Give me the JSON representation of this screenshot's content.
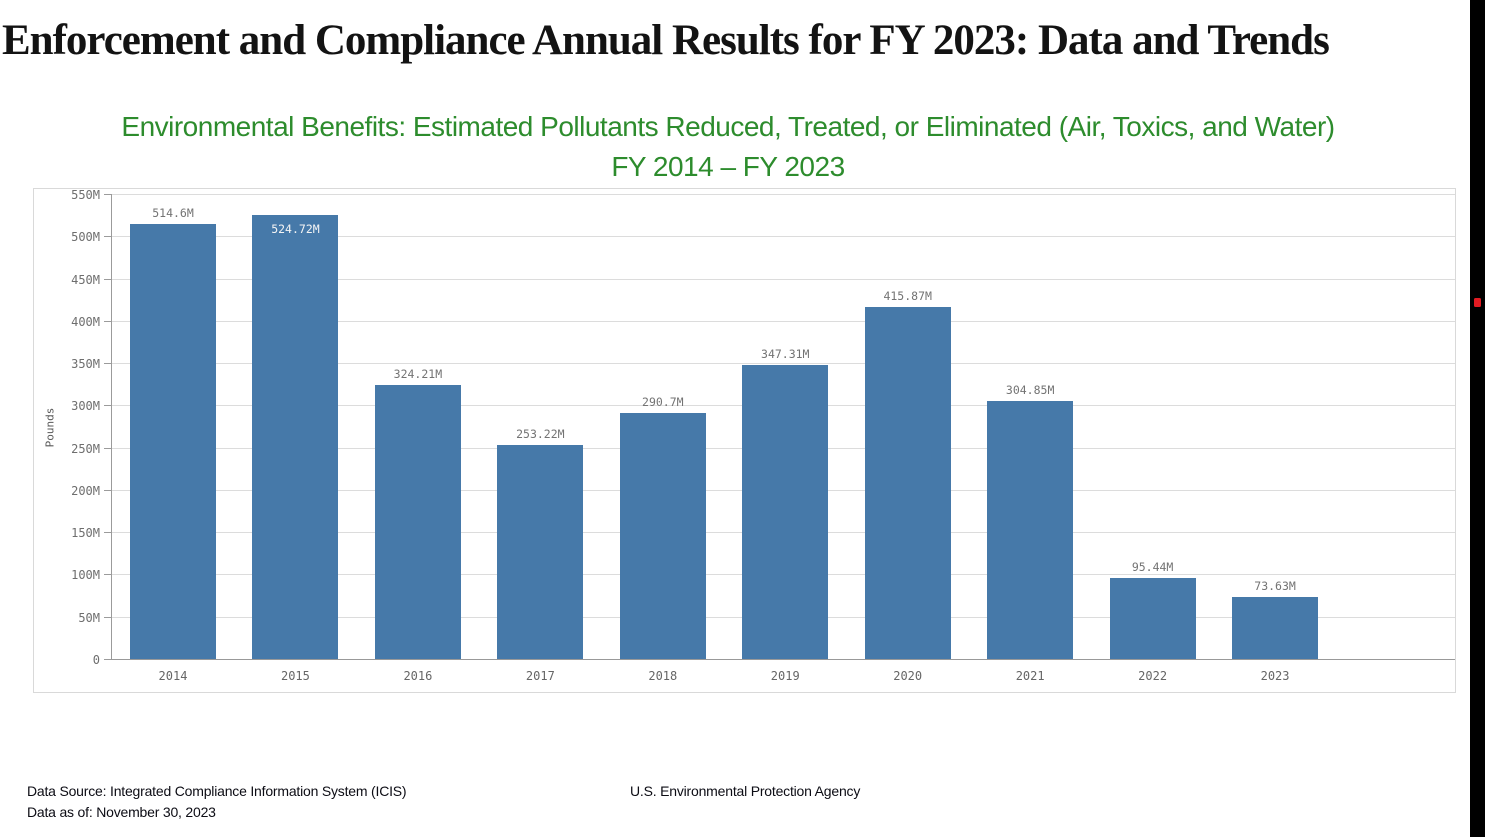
{
  "page": {
    "title": "Enforcement and Compliance Annual Results for FY 2023: Data and Trends"
  },
  "chart": {
    "subtitle_line1": "Environmental Benefits: Estimated Pollutants Reduced, Treated, or Eliminated (Air, Toxics, and Water)",
    "subtitle_line2": "FY 2014 – FY 2023",
    "subtitle_color": "#2d8c2d"
  },
  "chart_data": {
    "type": "bar",
    "title": "Environmental Benefits: Estimated Pollutants Reduced, Treated, or Eliminated (Air, Toxics, and Water) FY 2014 – FY 2023",
    "xlabel": "",
    "ylabel": "Pounds",
    "unit": "millions of pounds",
    "categories": [
      "2014",
      "2015",
      "2016",
      "2017",
      "2018",
      "2019",
      "2020",
      "2021",
      "2022",
      "2023"
    ],
    "values": [
      514.6,
      524.72,
      324.21,
      253.22,
      290.7,
      347.31,
      415.87,
      304.85,
      95.44,
      73.63
    ],
    "value_labels": [
      "514.6M",
      "524.72M",
      "324.21M",
      "253.22M",
      "290.7M",
      "347.31M",
      "415.87M",
      "304.85M",
      "95.44M",
      "73.63M"
    ],
    "label_inside_index": 1,
    "ylim": [
      0,
      550
    ],
    "ytick_step": 50,
    "ytick_labels": [
      "0",
      "50M",
      "100M",
      "150M",
      "200M",
      "250M",
      "300M",
      "350M",
      "400M",
      "450M",
      "500M",
      "550M"
    ],
    "grid": true,
    "legend": "none",
    "bar_color": "#4679a9",
    "grid_color": "#dcdcdc",
    "axis_color": "#9b9b9b",
    "tick_label_color": "#6e6e6e",
    "value_label_color": "#737373",
    "inside_label_color": "#f5f5f5"
  },
  "footer": {
    "data_source": "Data Source: Integrated Compliance Information System (ICIS)",
    "data_as_of": "Data as of: November 30, 2023",
    "agency": "U.S. Environmental Protection Agency"
  },
  "edge": {
    "bar_color": "#000000",
    "marker_color": "#e11b22"
  }
}
